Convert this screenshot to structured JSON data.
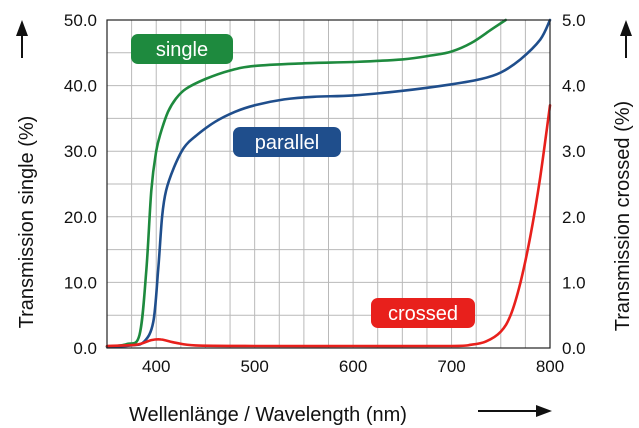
{
  "chart_data": {
    "type": "line",
    "xlabel": "Wellenlänge / Wavelength (nm)",
    "ylabel": "Transmission single (%)",
    "y2label": "Transmission crossed (%)",
    "xlim": [
      350,
      800
    ],
    "ylim": [
      0,
      50
    ],
    "y2lim": [
      0,
      5
    ],
    "x_ticks": [
      400,
      500,
      600,
      700,
      800
    ],
    "x_tick_labels": [
      "400",
      "500",
      "600",
      "700",
      "800"
    ],
    "y_ticks": [
      0,
      10,
      20,
      30,
      40,
      50
    ],
    "y_tick_labels": [
      "0.0",
      "10.0",
      "20.0",
      "30.0",
      "40.0",
      "50.0"
    ],
    "y2_ticks": [
      0,
      1,
      2,
      3,
      4,
      5
    ],
    "y2_tick_labels": [
      "0.0",
      "1.0",
      "2.0",
      "3.0",
      "4.0",
      "5.0"
    ],
    "grid": true,
    "series": [
      {
        "name": "single",
        "axis": "left",
        "color": "#1e8a3e",
        "points": [
          [
            350,
            0.2
          ],
          [
            370,
            0.6
          ],
          [
            383,
            2
          ],
          [
            390,
            12
          ],
          [
            395,
            24
          ],
          [
            400,
            30
          ],
          [
            405,
            33
          ],
          [
            412,
            36
          ],
          [
            420,
            38
          ],
          [
            430,
            39.5
          ],
          [
            450,
            41
          ],
          [
            475,
            42.3
          ],
          [
            500,
            43
          ],
          [
            550,
            43.4
          ],
          [
            600,
            43.6
          ],
          [
            650,
            44
          ],
          [
            680,
            44.6
          ],
          [
            700,
            45.2
          ],
          [
            720,
            46.5
          ],
          [
            740,
            48.5
          ],
          [
            755,
            50
          ]
        ]
      },
      {
        "name": "parallel",
        "axis": "left",
        "color": "#1f4e8c",
        "points": [
          [
            350,
            0.2
          ],
          [
            375,
            0.4
          ],
          [
            388,
            1
          ],
          [
            397,
            4
          ],
          [
            402,
            12
          ],
          [
            406,
            20
          ],
          [
            410,
            24
          ],
          [
            418,
            27.5
          ],
          [
            428,
            30.5
          ],
          [
            440,
            32.3
          ],
          [
            460,
            34.5
          ],
          [
            480,
            36
          ],
          [
            500,
            37
          ],
          [
            530,
            37.9
          ],
          [
            560,
            38.3
          ],
          [
            600,
            38.5
          ],
          [
            650,
            39.2
          ],
          [
            700,
            40.2
          ],
          [
            730,
            41
          ],
          [
            750,
            42
          ],
          [
            770,
            44
          ],
          [
            790,
            47
          ],
          [
            800,
            50
          ]
        ]
      },
      {
        "name": "crossed",
        "axis": "right",
        "color": "#e8201c",
        "points": [
          [
            350,
            0.03
          ],
          [
            380,
            0.05
          ],
          [
            395,
            0.12
          ],
          [
            405,
            0.13
          ],
          [
            420,
            0.08
          ],
          [
            440,
            0.04
          ],
          [
            500,
            0.03
          ],
          [
            600,
            0.03
          ],
          [
            700,
            0.03
          ],
          [
            720,
            0.05
          ],
          [
            735,
            0.1
          ],
          [
            750,
            0.25
          ],
          [
            760,
            0.5
          ],
          [
            770,
            1.0
          ],
          [
            780,
            1.7
          ],
          [
            790,
            2.6
          ],
          [
            800,
            3.7
          ]
        ]
      }
    ],
    "annotations": [
      {
        "text": "single",
        "color": "#1e8a3e"
      },
      {
        "text": "parallel",
        "color": "#1f4e8c"
      },
      {
        "text": "crossed",
        "color": "#e8201c"
      }
    ]
  }
}
